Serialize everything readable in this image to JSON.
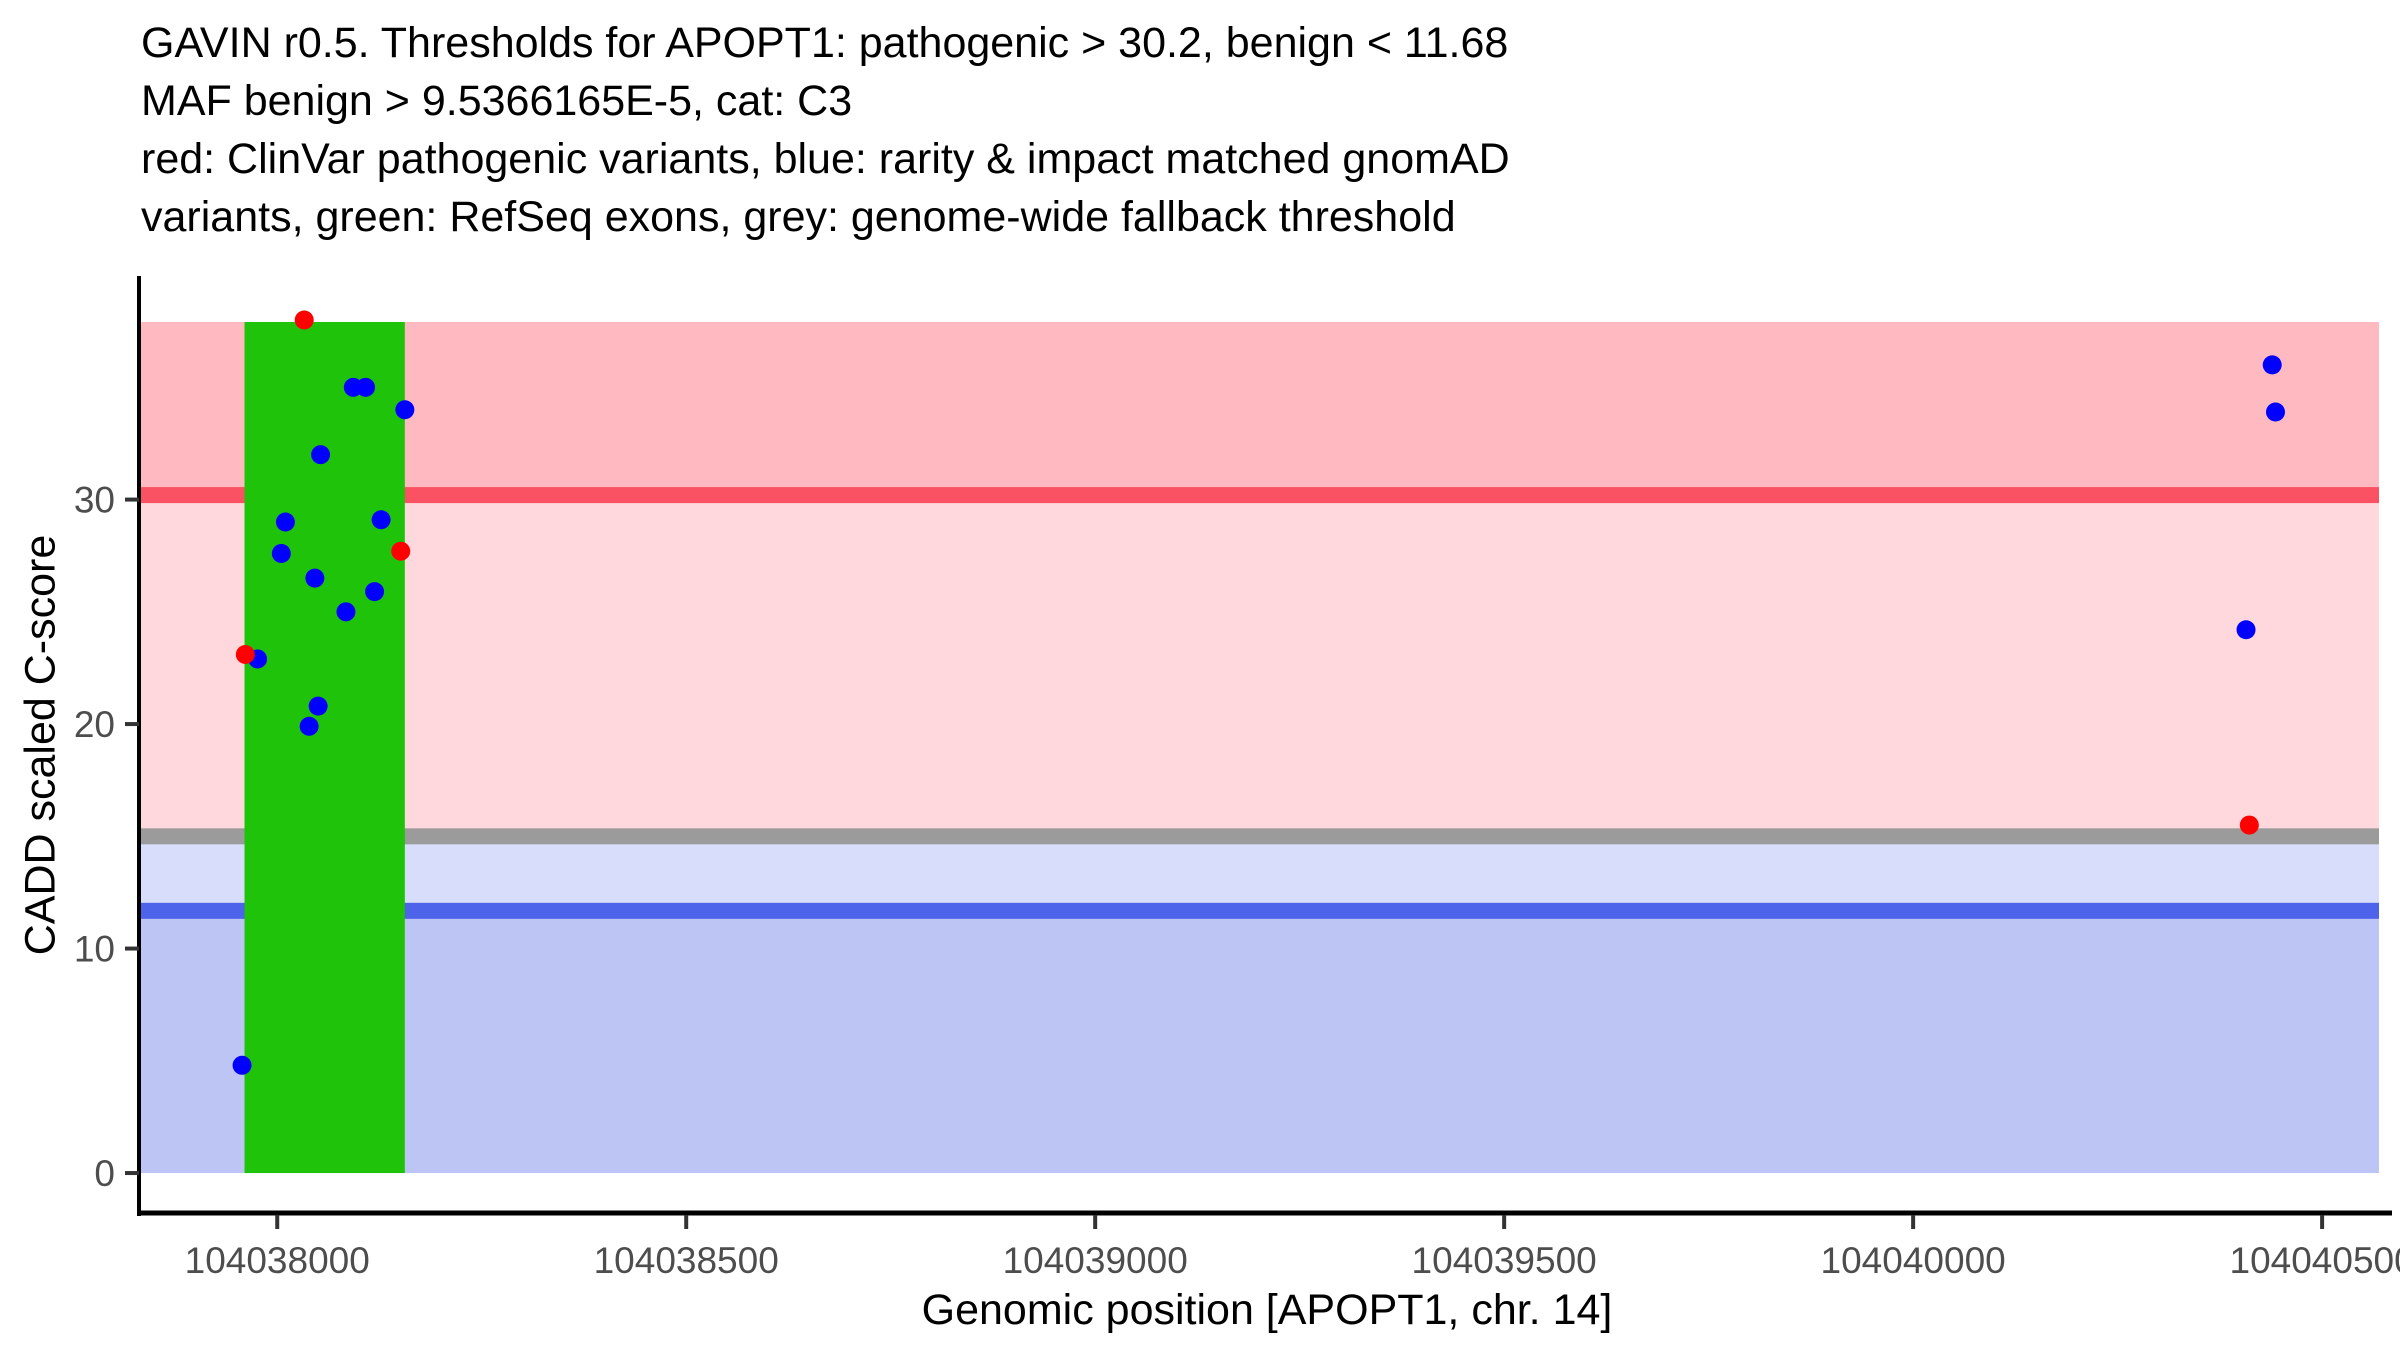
{
  "title": {
    "lines": [
      "GAVIN r0.5. Thresholds for APOPT1: pathogenic > 30.2, benign < 11.68",
      "MAF benign > 9.5366165E-5, cat: C3",
      "red: ClinVar pathogenic variants, blue: rarity & impact matched gnomAD",
      "variants, green: RefSeq exons, grey: genome-wide fallback threshold"
    ]
  },
  "axes": {
    "x_label": "Genomic position [APOPT1, chr. 14]",
    "y_label": "CADD scaled C-score"
  },
  "colors": {
    "pathogenic_band": "#FFB9C1",
    "vous_upper_band": "#FFD8DD",
    "vous_lower_band": "#D7DDFB",
    "benign_band": "#BDC5F5",
    "pathogenic_line": "#FA5163",
    "fallback_line": "#9B9B9B",
    "benign_line": "#4D63E9",
    "exon_green": "#1FC30A",
    "point_red": "#FF0000",
    "point_blue": "#0000FF",
    "axis_line": "#000000",
    "tick_mark": "#333333",
    "tick_label": "#4D4D4D"
  },
  "chart_data": {
    "type": "scatter",
    "title": "GAVIN r0.5. Thresholds for APOPT1: pathogenic > 30.2, benign < 11.68\nMAF benign > 9.5366165E-5, cat: C3\nred: ClinVar pathogenic variants, blue: rarity & impact matched gnomAD\nvariants, green: RefSeq exons, grey: genome-wide fallback threshold",
    "xlabel": "Genomic position [APOPT1, chr. 14]",
    "ylabel": "CADD scaled C-score",
    "gene": "APOPT1",
    "chromosome": "14",
    "category": "C3",
    "maf_benign_threshold": "9.5366165E-5",
    "xlim": [
      104037831,
      104040583
    ],
    "ylim": [
      -1.78,
      39.87
    ],
    "grid": false,
    "legend_position": "none",
    "x_ticks": [
      104038000,
      104038500,
      104039000,
      104039500,
      104040000,
      104040500
    ],
    "x_tick_labels": [
      "104038000",
      "104038500",
      "104039000",
      "104039500",
      "104040000",
      "104040500"
    ],
    "y_ticks": [
      0,
      10,
      20,
      30
    ],
    "y_tick_labels": [
      "0",
      "10",
      "20",
      "30"
    ],
    "thresholds": {
      "pathogenic": 30.2,
      "benign": 11.68,
      "genome_wide_fallback": 15.0
    },
    "bands": [
      {
        "name": "pathogenic-region",
        "from": 30.2,
        "to": 37.91,
        "color_key": "pathogenic_band"
      },
      {
        "name": "vous-upper-region",
        "from": 15.0,
        "to": 30.2,
        "color_key": "vous_upper_band"
      },
      {
        "name": "vous-lower-region",
        "from": 11.68,
        "to": 15.0,
        "color_key": "vous_lower_band"
      },
      {
        "name": "benign-region",
        "from": 0,
        "to": 11.68,
        "color_key": "benign_band"
      }
    ],
    "threshold_lines": [
      {
        "name": "pathogenic-threshold-line",
        "value": 30.2,
        "color_key": "pathogenic_line"
      },
      {
        "name": "genome-wide-fallback-line",
        "value": 15.0,
        "color_key": "fallback_line"
      },
      {
        "name": "benign-threshold-line",
        "value": 11.68,
        "color_key": "benign_line"
      }
    ],
    "exon": {
      "name": "refseq-exon",
      "start": 104037960,
      "end": 104038156,
      "from": 0,
      "to": 37.91,
      "color_key": "exon_green"
    },
    "series": [
      {
        "name": "ClinVar pathogenic variants",
        "color_key": "point_red",
        "points": [
          [
            104038033,
            38.0
          ],
          [
            104038151,
            27.7
          ],
          [
            104037961,
            23.1
          ],
          [
            104040411,
            15.5
          ]
        ]
      },
      {
        "name": "rarity & impact matched gnomAD variants",
        "color_key": "point_blue",
        "points": [
          [
            104038093,
            35.0
          ],
          [
            104038108,
            35.0
          ],
          [
            104038156,
            34.0
          ],
          [
            104038053,
            32.0
          ],
          [
            104038010,
            29.0
          ],
          [
            104038127,
            29.1
          ],
          [
            104038005,
            27.6
          ],
          [
            104038046,
            26.5
          ],
          [
            104038119,
            25.9
          ],
          [
            104038084,
            25.0
          ],
          [
            104037976,
            22.9
          ],
          [
            104038050,
            20.8
          ],
          [
            104038039,
            19.9
          ],
          [
            104037957,
            4.8
          ],
          [
            104040439,
            36.0
          ],
          [
            104040443,
            33.9
          ],
          [
            104040407,
            24.2
          ]
        ]
      }
    ]
  }
}
